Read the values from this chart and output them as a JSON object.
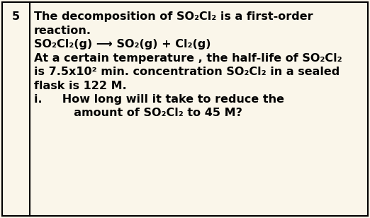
{
  "background_color": "#faf6ea",
  "border_color": "#000000",
  "number": "5",
  "line1": "The decomposition of SO₂Cl₂ is a first-order",
  "line2": "reaction.",
  "line3": "SO₂Cl₂(g) ⟶ SO₂(g) + Cl₂(g)",
  "line4": "At a certain temperature , the half-life of SO₂Cl₂",
  "line5": "is 7.5x10² min. concentration SO₂Cl₂ in a sealed",
  "line6": "flask is 122 M.",
  "line7": "i.     How long will it take to reduce the",
  "line8": "          amount of SO₂Cl₂ to 45 M?",
  "font_size": 11.5,
  "font_family": "DejaVu Sans",
  "font_weight": "bold"
}
